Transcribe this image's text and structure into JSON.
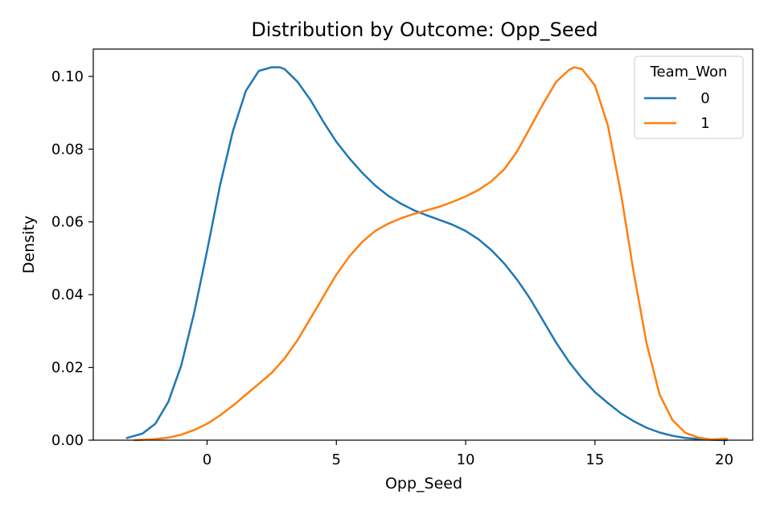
{
  "chart_data": {
    "type": "line",
    "title": "Distribution by Outcome: Opp_Seed",
    "xlabel": "Opp_Seed",
    "ylabel": "Density",
    "xlim": [
      -4.4,
      21.1
    ],
    "ylim": [
      0,
      0.1075
    ],
    "xticks": [
      0,
      5,
      10,
      15,
      20
    ],
    "xtick_labels": [
      "0",
      "5",
      "10",
      "15",
      "20"
    ],
    "yticks": [
      0,
      0.02,
      0.04,
      0.06,
      0.08,
      0.1
    ],
    "ytick_labels": [
      "0.00",
      "0.02",
      "0.04",
      "0.06",
      "0.08",
      "0.10"
    ],
    "grid": false,
    "legend": {
      "title": "Team_Won",
      "placement": "top-right"
    },
    "series": [
      {
        "name": "0",
        "color": "#1f77b4",
        "x": [
          -3.1,
          -2.5,
          -2.0,
          -1.5,
          -1.0,
          -0.5,
          0.0,
          0.5,
          1.0,
          1.5,
          2.0,
          2.5,
          2.8,
          3.0,
          3.5,
          4.0,
          4.5,
          5.0,
          5.5,
          6.0,
          6.5,
          7.0,
          7.5,
          8.0,
          8.5,
          9.0,
          9.5,
          10.0,
          10.5,
          11.0,
          11.5,
          12.0,
          12.5,
          13.0,
          13.5,
          14.0,
          14.5,
          15.0,
          15.5,
          16.0,
          16.5,
          17.0,
          17.5,
          18.0,
          18.5,
          19.0,
          19.5,
          20.1
        ],
        "y": [
          0.0006,
          0.0018,
          0.0045,
          0.0105,
          0.0205,
          0.035,
          0.052,
          0.07,
          0.085,
          0.096,
          0.1015,
          0.1025,
          0.1025,
          0.102,
          0.0985,
          0.0935,
          0.0875,
          0.082,
          0.0775,
          0.0735,
          0.07,
          0.0672,
          0.065,
          0.0632,
          0.0618,
          0.0605,
          0.0592,
          0.0575,
          0.0552,
          0.0522,
          0.0485,
          0.044,
          0.0388,
          0.0328,
          0.0268,
          0.0215,
          0.017,
          0.0132,
          0.0102,
          0.0074,
          0.0052,
          0.0034,
          0.0021,
          0.0012,
          0.0006,
          0.0003,
          0.0001,
          0.0
        ]
      },
      {
        "name": "1",
        "color": "#ff7f0e",
        "x": [
          -2.8,
          -2.0,
          -1.5,
          -1.0,
          -0.5,
          0.0,
          0.5,
          1.0,
          1.5,
          2.0,
          2.5,
          3.0,
          3.5,
          4.0,
          4.5,
          5.0,
          5.5,
          6.0,
          6.5,
          7.0,
          7.5,
          8.0,
          8.5,
          9.0,
          9.5,
          10.0,
          10.5,
          11.0,
          11.5,
          12.0,
          12.5,
          13.0,
          13.5,
          14.0,
          14.2,
          14.5,
          15.0,
          15.5,
          16.0,
          16.5,
          17.0,
          17.5,
          18.0,
          18.5,
          19.0,
          19.5,
          20.1
        ],
        "y": [
          0.0,
          0.0003,
          0.0007,
          0.0015,
          0.0028,
          0.0045,
          0.0068,
          0.0095,
          0.0125,
          0.0155,
          0.0185,
          0.0225,
          0.0275,
          0.0335,
          0.0395,
          0.0455,
          0.0505,
          0.0545,
          0.0575,
          0.0595,
          0.061,
          0.0622,
          0.0632,
          0.0642,
          0.0655,
          0.067,
          0.0688,
          0.0712,
          0.0745,
          0.0795,
          0.086,
          0.0925,
          0.0985,
          0.1018,
          0.1025,
          0.102,
          0.0975,
          0.0865,
          0.068,
          0.046,
          0.0265,
          0.0125,
          0.0055,
          0.002,
          0.0007,
          0.0002,
          0.0004
        ]
      }
    ]
  }
}
